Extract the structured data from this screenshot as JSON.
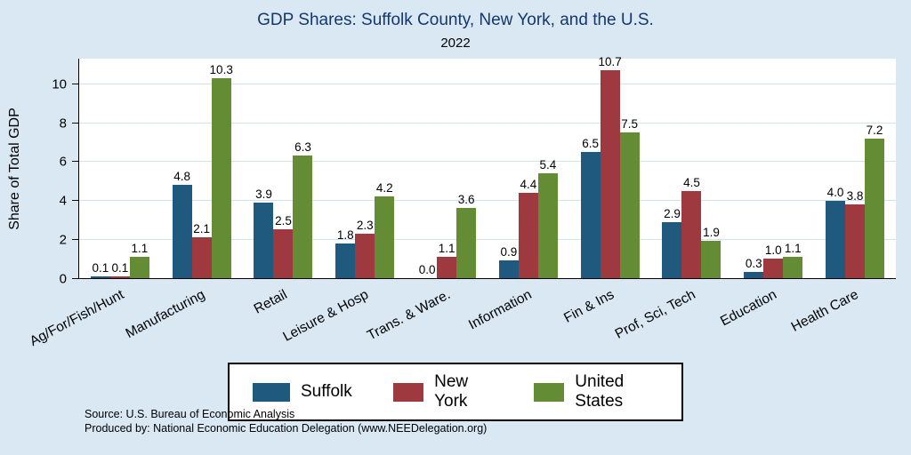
{
  "chart_data": {
    "type": "bar",
    "title": "GDP Shares: Suffolk County, New York, and the U.S.",
    "subtitle": "2022",
    "ylabel": "Share of Total GDP",
    "ylim": [
      0,
      11.3
    ],
    "yticks": [
      0,
      2,
      4,
      6,
      8,
      10
    ],
    "grid": true,
    "legend_position": "bottom",
    "categories": [
      "Ag/For/Fish/Hunt",
      "Manufacturing",
      "Retail",
      "Leisure & Hosp",
      "Trans. & Ware.",
      "Information",
      "Fin & Ins",
      "Prof, Sci, Tech",
      "Education",
      "Health Care"
    ],
    "series": [
      {
        "name": "Suffolk",
        "color": "#1f5a7e",
        "values": [
          0.1,
          4.8,
          3.9,
          1.8,
          0.0,
          0.9,
          6.5,
          2.9,
          0.3,
          4.0
        ]
      },
      {
        "name": "New York",
        "color": "#9e3a3f",
        "values": [
          0.1,
          2.1,
          2.5,
          2.3,
          1.1,
          4.4,
          10.7,
          4.5,
          1.0,
          3.8
        ]
      },
      {
        "name": "United States",
        "color": "#648c35",
        "values": [
          1.1,
          10.3,
          6.3,
          4.2,
          3.6,
          5.4,
          7.5,
          1.9,
          1.1,
          7.2
        ]
      }
    ],
    "value_label_decimals": 1
  },
  "notes": {
    "source": "Source: U.S. Bureau of Economic Analysis",
    "produced_by": "Produced by: National Economic Education Delegation (www.NEEDelegation.org)"
  },
  "colors": {
    "background": "#d9e8f3",
    "plot_background": "#ffffff",
    "gridline": "#cfe3f2",
    "title_text": "#14386e",
    "suffolk": "#1f5a7e",
    "new_york": "#9e3a3f",
    "united_states": "#648c35"
  }
}
